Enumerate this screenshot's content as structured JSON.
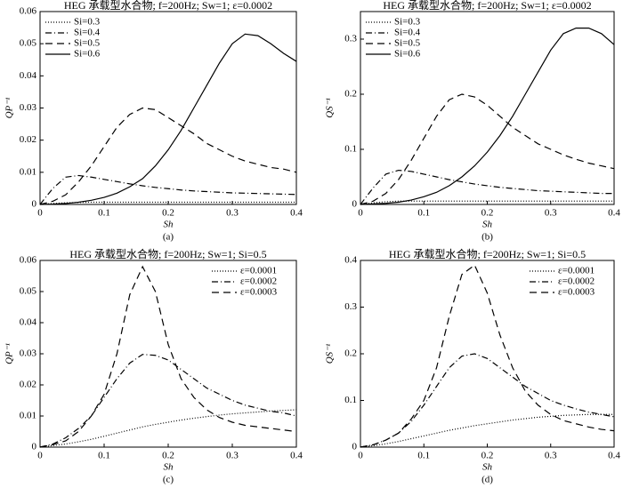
{
  "chart_data": [
    {
      "type": "line",
      "title": "HEG 承载型水合物; f=200Hz; Sw=1; ε=0.0002",
      "xlabel": "Sh",
      "ylabel": "QP⁻¹",
      "caption": "(a)",
      "x": [
        0,
        0.02,
        0.04,
        0.06,
        0.08,
        0.1,
        0.12,
        0.14,
        0.16,
        0.18,
        0.2,
        0.22,
        0.24,
        0.26,
        0.28,
        0.3,
        0.32,
        0.34,
        0.36,
        0.38,
        0.4
      ],
      "xlim": [
        0,
        0.4
      ],
      "xticks": [
        0,
        0.1,
        0.2,
        0.3,
        0.4
      ],
      "ylim": [
        0,
        0.06
      ],
      "yticks": [
        0,
        0.01,
        0.02,
        0.03,
        0.04,
        0.05,
        0.06
      ],
      "legend": "upper left",
      "series": [
        {
          "name": "Si=0.3",
          "color": "#000000",
          "style": "dotted",
          "values": [
            0,
            0.0003,
            0.0005,
            0.0006,
            0.0007,
            0.0007,
            0.0007,
            0.0007,
            0.0007,
            0.0007,
            0.0007,
            0.0007,
            0.0007,
            0.0007,
            0.0007,
            0.0007,
            0.0007,
            0.0007,
            0.0007,
            0.0007,
            0.0007
          ]
        },
        {
          "name": "Si=0.4",
          "color": "#000000",
          "style": "dashdot",
          "values": [
            0,
            0.005,
            0.0085,
            0.009,
            0.0085,
            0.0078,
            0.0071,
            0.0064,
            0.0058,
            0.0053,
            0.0049,
            0.0045,
            0.0042,
            0.004,
            0.0038,
            0.0036,
            0.0035,
            0.0034,
            0.0033,
            0.0032,
            0.0031
          ]
        },
        {
          "name": "Si=0.5",
          "color": "#000000",
          "style": "dashed",
          "values": [
            0,
            0.001,
            0.003,
            0.007,
            0.012,
            0.018,
            0.024,
            0.028,
            0.03,
            0.0295,
            0.027,
            0.0245,
            0.022,
            0.019,
            0.017,
            0.015,
            0.0135,
            0.0125,
            0.0115,
            0.011,
            0.01
          ]
        },
        {
          "name": "Si=0.6",
          "color": "#000000",
          "style": "solid",
          "values": [
            0,
            0.0001,
            0.0003,
            0.0007,
            0.0013,
            0.0022,
            0.0035,
            0.0055,
            0.008,
            0.012,
            0.017,
            0.023,
            0.03,
            0.037,
            0.044,
            0.05,
            0.053,
            0.0525,
            0.05,
            0.047,
            0.0445
          ]
        }
      ]
    },
    {
      "type": "line",
      "title": "HEG 承载型水合物; f=200Hz; Sw=1; ε=0.0002",
      "xlabel": "Sh",
      "ylabel": "QS⁻¹",
      "caption": "(b)",
      "x": [
        0,
        0.02,
        0.04,
        0.06,
        0.08,
        0.1,
        0.12,
        0.14,
        0.16,
        0.18,
        0.2,
        0.22,
        0.24,
        0.26,
        0.28,
        0.3,
        0.32,
        0.34,
        0.36,
        0.38,
        0.4
      ],
      "xlim": [
        0,
        0.4
      ],
      "xticks": [
        0,
        0.1,
        0.2,
        0.3,
        0.4
      ],
      "ylim": [
        0,
        0.35
      ],
      "yticks": [
        0,
        0.1,
        0.2,
        0.3
      ],
      "legend": "upper left",
      "series": [
        {
          "name": "Si=0.3",
          "color": "#000000",
          "style": "dotted",
          "values": [
            0,
            0.003,
            0.005,
            0.006,
            0.006,
            0.006,
            0.006,
            0.006,
            0.006,
            0.006,
            0.006,
            0.006,
            0.006,
            0.006,
            0.006,
            0.006,
            0.006,
            0.006,
            0.006,
            0.006,
            0.006
          ]
        },
        {
          "name": "Si=0.4",
          "color": "#000000",
          "style": "dashdot",
          "values": [
            0,
            0.03,
            0.055,
            0.062,
            0.06,
            0.055,
            0.05,
            0.045,
            0.041,
            0.037,
            0.034,
            0.031,
            0.029,
            0.027,
            0.025,
            0.024,
            0.023,
            0.022,
            0.021,
            0.02,
            0.02
          ]
        },
        {
          "name": "Si=0.5",
          "color": "#000000",
          "style": "dashed",
          "values": [
            0,
            0.006,
            0.02,
            0.045,
            0.08,
            0.12,
            0.16,
            0.19,
            0.2,
            0.195,
            0.18,
            0.16,
            0.14,
            0.125,
            0.11,
            0.1,
            0.09,
            0.082,
            0.075,
            0.07,
            0.065
          ]
        },
        {
          "name": "Si=0.6",
          "color": "#000000",
          "style": "solid",
          "values": [
            0,
            0.001,
            0.002,
            0.004,
            0.008,
            0.014,
            0.022,
            0.034,
            0.05,
            0.07,
            0.095,
            0.125,
            0.16,
            0.2,
            0.24,
            0.28,
            0.31,
            0.32,
            0.32,
            0.31,
            0.29
          ]
        }
      ]
    },
    {
      "type": "line",
      "title": "HEG 承载型水合物; f=200Hz; Sw=1; Si=0.5",
      "xlabel": "Sh",
      "ylabel": "QP⁻¹",
      "caption": "(c)",
      "x": [
        0,
        0.02,
        0.04,
        0.06,
        0.08,
        0.1,
        0.12,
        0.14,
        0.16,
        0.18,
        0.2,
        0.22,
        0.24,
        0.26,
        0.28,
        0.3,
        0.32,
        0.34,
        0.36,
        0.38,
        0.4
      ],
      "xlim": [
        0,
        0.4
      ],
      "xticks": [
        0,
        0.1,
        0.2,
        0.3,
        0.4
      ],
      "ylim": [
        0,
        0.06
      ],
      "yticks": [
        0,
        0.01,
        0.02,
        0.03,
        0.04,
        0.05,
        0.06
      ],
      "legend": "upper right",
      "series": [
        {
          "name": "ε=0.0001",
          "color": "#000000",
          "style": "dotted",
          "values": [
            0,
            0.0005,
            0.001,
            0.0017,
            0.0025,
            0.0035,
            0.0045,
            0.0055,
            0.0065,
            0.0073,
            0.008,
            0.0087,
            0.0093,
            0.0098,
            0.0103,
            0.0107,
            0.011,
            0.0113,
            0.0116,
            0.0118,
            0.012
          ]
        },
        {
          "name": "ε=0.0002",
          "color": "#000000",
          "style": "dashdot",
          "values": [
            0,
            0.001,
            0.003,
            0.006,
            0.01,
            0.016,
            0.022,
            0.027,
            0.0298,
            0.0295,
            0.028,
            0.025,
            0.022,
            0.019,
            0.017,
            0.015,
            0.0135,
            0.0125,
            0.0115,
            0.011,
            0.01
          ]
        },
        {
          "name": "ε=0.0003",
          "color": "#000000",
          "style": "dashed",
          "values": [
            0,
            0.0008,
            0.002,
            0.005,
            0.01,
            0.017,
            0.03,
            0.049,
            0.058,
            0.05,
            0.033,
            0.022,
            0.016,
            0.012,
            0.0095,
            0.008,
            0.007,
            0.0065,
            0.006,
            0.0055,
            0.005
          ]
        }
      ]
    },
    {
      "type": "line",
      "title": "HEG 承载型水合物; f=200Hz; Sw=1; Si=0.5",
      "xlabel": "Sh",
      "ylabel": "QS⁻¹",
      "caption": "(d)",
      "x": [
        0,
        0.02,
        0.04,
        0.06,
        0.08,
        0.1,
        0.12,
        0.14,
        0.16,
        0.18,
        0.2,
        0.22,
        0.24,
        0.26,
        0.28,
        0.3,
        0.32,
        0.34,
        0.36,
        0.38,
        0.4
      ],
      "xlim": [
        0,
        0.4
      ],
      "xticks": [
        0,
        0.1,
        0.2,
        0.3,
        0.4
      ],
      "ylim": [
        0,
        0.4
      ],
      "yticks": [
        0,
        0.1,
        0.2,
        0.3,
        0.4
      ],
      "legend": "upper right",
      "series": [
        {
          "name": "ε=0.0001",
          "color": "#000000",
          "style": "dotted",
          "values": [
            0,
            0.003,
            0.007,
            0.012,
            0.018,
            0.024,
            0.03,
            0.036,
            0.041,
            0.046,
            0.05,
            0.054,
            0.058,
            0.061,
            0.064,
            0.066,
            0.068,
            0.069,
            0.07,
            0.07,
            0.07
          ]
        },
        {
          "name": "ε=0.0002",
          "color": "#000000",
          "style": "dashdot",
          "values": [
            0,
            0.005,
            0.015,
            0.03,
            0.055,
            0.09,
            0.13,
            0.17,
            0.195,
            0.2,
            0.19,
            0.17,
            0.15,
            0.13,
            0.115,
            0.1,
            0.09,
            0.082,
            0.075,
            0.07,
            0.065
          ]
        },
        {
          "name": "ε=0.0003",
          "color": "#000000",
          "style": "dashed",
          "values": [
            0,
            0.005,
            0.015,
            0.03,
            0.06,
            0.1,
            0.17,
            0.28,
            0.37,
            0.39,
            0.33,
            0.24,
            0.17,
            0.12,
            0.09,
            0.07,
            0.057,
            0.05,
            0.043,
            0.038,
            0.035
          ]
        }
      ]
    }
  ]
}
